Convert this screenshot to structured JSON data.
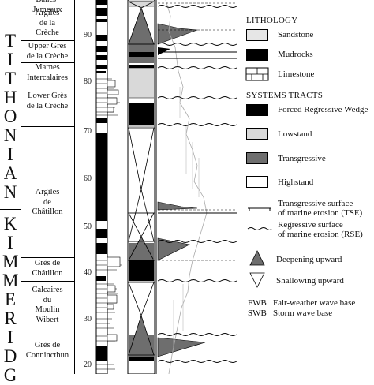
{
  "stages": {
    "tithonian": [
      "T",
      "I",
      "T",
      "H",
      "O",
      "N",
      "I",
      "A",
      "N"
    ],
    "kimmeridgian": [
      "K",
      "I",
      "M",
      "M",
      "E",
      "R",
      "I",
      "D",
      "G"
    ]
  },
  "formations": {
    "top_cut": "Bancs-Jumeaux",
    "argiles_creche": [
      "Argiles",
      "de la",
      "Crèche"
    ],
    "upper_gres_creche": [
      "Upper Grès",
      "de la Crèche"
    ],
    "marnes_intercalaires": [
      "Marnes",
      "Intercalaires"
    ],
    "lower_gres_creche": [
      "Lower Grès",
      "de la Crèche"
    ],
    "argiles_chatillon": [
      "Argiles",
      "de",
      "Châtillon"
    ],
    "gres_chatillon": [
      "Grès de",
      "Châtillon"
    ],
    "calcaires_moulin": [
      "Calcaires",
      "du",
      "Moulin",
      "Wibert"
    ],
    "gres_connincthun": [
      "Grès de",
      "Connincthun"
    ]
  },
  "depth_ticks": [
    "90",
    "80",
    "70",
    "60",
    "50",
    "40",
    "30",
    "20"
  ],
  "legend": {
    "lithology_title": "LITHOLOGY",
    "sandstone": "Sandstone",
    "mudrocks": "Mudrocks",
    "limestone": "Limestone",
    "systems_tracts_title": "SYSTEMS TRACTS",
    "frwd": "Forced Regressive Wedge",
    "lowstand": "Lowstand",
    "transgressive": "Transgressive",
    "highstand": "Highstand",
    "tse": [
      "Transgressive surface",
      "of marine erosion (TSE)"
    ],
    "rse": [
      "Regressive surface",
      "of marine erosion (RSE)"
    ],
    "deepening": "Deepening upward",
    "shallowing": "Shallowing upward",
    "fwb_abbr": "FWB",
    "fwb": "Fair-weather wave base",
    "swb_abbr": "SWB",
    "swb": "Storm wave base"
  },
  "colors": {
    "mudrock": "#000000",
    "sandstone": "#e6e6e6",
    "frwd": "#000000",
    "lowstand": "#d9d9d9",
    "transgressive": "#6e6e6e",
    "highstand": "#ffffff"
  }
}
